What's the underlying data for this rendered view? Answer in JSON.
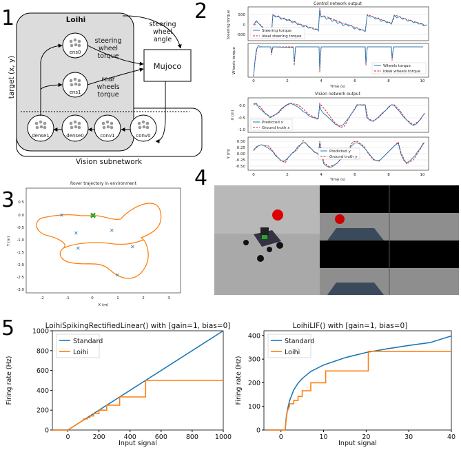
{
  "panel_numbers": [
    "1",
    "2",
    "3",
    "4",
    "5"
  ],
  "panel1": {
    "loihi_label": "Loihi",
    "target_label": "target (x, y)",
    "nodes": {
      "ens0": "ens0",
      "ens1": "ens1",
      "dense1": "dense1",
      "dense0": "dense0",
      "conv1": "conv1",
      "conv0": "conv0"
    },
    "mujoco_label": "Mujoco",
    "steering_wheel_torque": [
      "steering",
      "wheel",
      "torque"
    ],
    "rear_wheels_torque": [
      "rear",
      "wheels",
      "torque"
    ],
    "steering_wheel_angle": [
      "steering",
      "wheel",
      "angle"
    ],
    "vision_subnetwork_label": "Vision subnetwork"
  },
  "panel2": {
    "control_title": "Control network output",
    "vision_title": "Vision network output",
    "xlabel": "Time (s)",
    "x_ticks": [
      "0",
      "2",
      "4",
      "6",
      "8",
      "10"
    ],
    "plots": [
      {
        "ylabel": "Steering torque",
        "yticks": [
          "500",
          "0",
          "-500"
        ],
        "legend": [
          "Steering torque",
          "Ideal steering torque"
        ]
      },
      {
        "ylabel": "Wheels torque",
        "yticks": [],
        "legend": [
          "Wheels torque",
          "Ideal wheels torque"
        ]
      },
      {
        "ylabel": "X (m)",
        "yticks": [
          "0.0",
          "-0.5",
          "-1.0"
        ],
        "legend": [
          "Predicted x",
          "Ground truth x"
        ]
      },
      {
        "ylabel": "Y (m)",
        "yticks": [
          "0.50",
          "0.25",
          "0.00",
          "-0.25",
          "-0.50"
        ],
        "legend": [
          "Predicted y",
          "Ground truth y"
        ]
      }
    ]
  },
  "panel3": {
    "title": "Rover trajectory in environment",
    "xlabel": "X (m)",
    "ylabel": "Y (m)",
    "x_ticks": [
      "-2",
      "-1",
      "0",
      "1",
      "2",
      "3"
    ],
    "y_ticks": [
      "0.5",
      "0.0",
      "-0.5",
      "-1.0",
      "-1.5",
      "-2.0",
      "-2.5",
      "-3.0"
    ]
  },
  "panel5": {
    "left_title": "LoihiSpikingRectifiedLinear() with [gain=1, bias=0]",
    "right_title": "LoihiLIF() with [gain=1, bias=0]",
    "xlabel": "Input signal",
    "ylabel": "Firing rate (Hz)",
    "legend": [
      "Standard",
      "Loihi"
    ],
    "colors": {
      "standard": "#1f77b4",
      "loihi": "#ff7f0e"
    }
  },
  "chart_data": [
    {
      "type": "line",
      "title": "LoihiSpikingRectifiedLinear() with [gain=1, bias=0]",
      "xlabel": "Input signal",
      "ylabel": "Firing rate (Hz)",
      "xlim": [
        -100,
        1000
      ],
      "ylim": [
        0,
        1000
      ],
      "x_ticks": [
        0,
        200,
        400,
        600,
        800,
        1000
      ],
      "y_ticks": [
        0,
        200,
        400,
        600,
        800,
        1000
      ],
      "series": [
        {
          "name": "Standard",
          "x": [
            -100,
            0,
            1000
          ],
          "y": [
            0,
            0,
            1000
          ]
        },
        {
          "name": "Loihi",
          "x": [
            -100,
            0,
            100,
            100,
            125,
            125,
            142,
            142,
            166,
            166,
            200,
            200,
            250,
            250,
            333,
            333,
            500,
            500,
            1000
          ],
          "y": [
            0,
            0,
            100,
            111,
            111,
            125,
            125,
            142,
            142,
            166,
            166,
            200,
            200,
            250,
            250,
            333,
            333,
            500,
            500
          ]
        }
      ]
    },
    {
      "type": "line",
      "title": "LoihiLIF() with [gain=1, bias=0]",
      "xlabel": "Input signal",
      "ylabel": "Firing rate (Hz)",
      "xlim": [
        -4,
        40
      ],
      "ylim": [
        0,
        420
      ],
      "x_ticks": [
        0,
        10,
        20,
        30,
        40
      ],
      "y_ticks": [
        0,
        100,
        200,
        300,
        400
      ],
      "series": [
        {
          "name": "Standard",
          "x": [
            -3,
            1,
            1.05,
            1.2,
            1.5,
            2,
            3,
            4,
            5,
            7,
            10,
            15,
            20,
            25,
            30,
            35,
            40
          ],
          "y": [
            0,
            0,
            15,
            46,
            83,
            123,
            170,
            198,
            218,
            248,
            275,
            306,
            328,
            344,
            358,
            370,
            398
          ]
        },
        {
          "name": "Loihi",
          "x": [
            -3,
            1,
            1.2,
            1.5,
            2,
            2,
            3,
            3,
            4,
            4,
            5,
            5,
            7,
            7,
            10.5,
            10.5,
            20.5,
            20.5,
            40
          ],
          "y": [
            0,
            0,
            40,
            80,
            100,
            111,
            111,
            125,
            125,
            142,
            142,
            166,
            166,
            200,
            200,
            250,
            250,
            333,
            333
          ]
        }
      ]
    }
  ]
}
